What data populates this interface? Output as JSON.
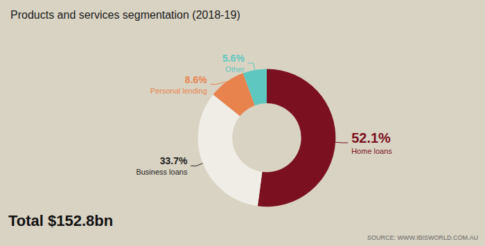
{
  "chart_data": {
    "type": "pie",
    "title": "Products and services segmentation (2018-19)",
    "categories": [
      "Home loans",
      "Business loans",
      "Personal lending",
      "Other"
    ],
    "values": [
      52.1,
      33.7,
      8.6,
      5.6
    ],
    "value_labels": [
      "52.1%",
      "33.7%",
      "8.6%",
      "5.6%"
    ],
    "colors": [
      "#7B1020",
      "#F0EDE6",
      "#E8834E",
      "#5EC8C0"
    ],
    "data_labels": true,
    "annotations": [
      "Total $152.8bn",
      "SOURCE: WWW.IBISWORLD.COM.AU"
    ]
  }
}
